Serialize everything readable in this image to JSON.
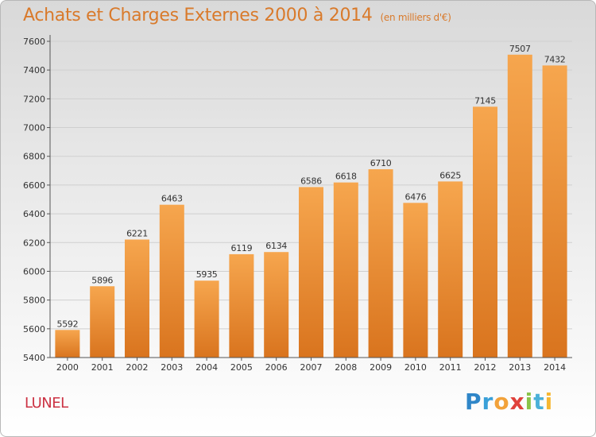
{
  "header": {
    "title": "Achats et Charges Externes 2000 à 2014",
    "subtitle": "(en milliers d'€)"
  },
  "footer": {
    "city": "LUNEL",
    "logo_text": "Proxiti"
  },
  "colors": {
    "bar_top": "#f6a64e",
    "bar_bottom": "#d9741e",
    "title": "#d97a2b",
    "city": "#cc3344"
  },
  "chart_data": {
    "type": "bar",
    "categories": [
      "2000",
      "2001",
      "2002",
      "2003",
      "2004",
      "2005",
      "2006",
      "2007",
      "2008",
      "2009",
      "2010",
      "2011",
      "2012",
      "2013",
      "2014"
    ],
    "values": [
      5592,
      5896,
      6221,
      6463,
      5935,
      6119,
      6134,
      6586,
      6618,
      6710,
      6476,
      6625,
      7145,
      7507,
      7432
    ],
    "yticks": [
      5400,
      5600,
      5800,
      6000,
      6200,
      6400,
      6600,
      6800,
      7000,
      7200,
      7400,
      7600
    ],
    "ylim": [
      5400,
      7600
    ],
    "grid": true,
    "data_labels": true
  }
}
